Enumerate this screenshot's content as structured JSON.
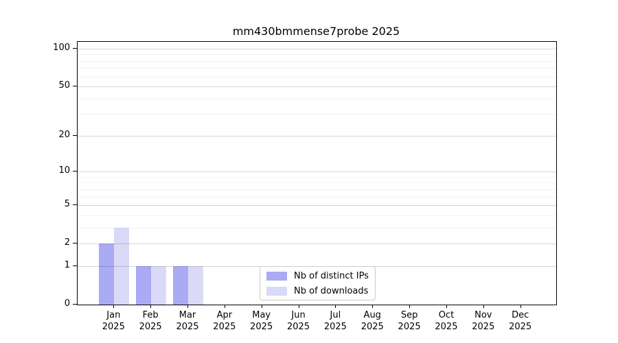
{
  "title": "mm430bmmense7probe 2025",
  "chart_data": {
    "type": "bar",
    "scale": "log1p",
    "title": "mm430bmmense7probe 2025",
    "categories": [
      "Jan",
      "Feb",
      "Mar",
      "Apr",
      "May",
      "Jun",
      "Jul",
      "Aug",
      "Sep",
      "Oct",
      "Nov",
      "Dec"
    ],
    "year": "2025",
    "series": [
      {
        "name": "Nb of distinct IPs",
        "color": "#aaaaf5",
        "values": [
          2,
          1,
          1,
          0,
          0,
          0,
          0,
          0,
          0,
          0,
          0,
          0
        ]
      },
      {
        "name": "Nb of downloads",
        "color": "#dadaf8",
        "values": [
          3,
          1,
          1,
          0,
          0,
          0,
          0,
          0,
          0,
          0,
          0,
          0
        ]
      }
    ],
    "yticks": [
      0,
      1,
      2,
      5,
      10,
      20,
      50,
      100
    ],
    "minor_gridlines": [
      3,
      4,
      6,
      7,
      8,
      9,
      30,
      40,
      60,
      70,
      80,
      90
    ],
    "ylim": [
      0,
      113
    ],
    "xlabel": "",
    "ylabel": "",
    "grid": true,
    "legend_position": "lower center"
  },
  "colors": {
    "major_grid": "#d6d6d6",
    "minor_grid": "#efefef",
    "spine": "#000000",
    "text": "#000000",
    "background": "#ffffff"
  }
}
